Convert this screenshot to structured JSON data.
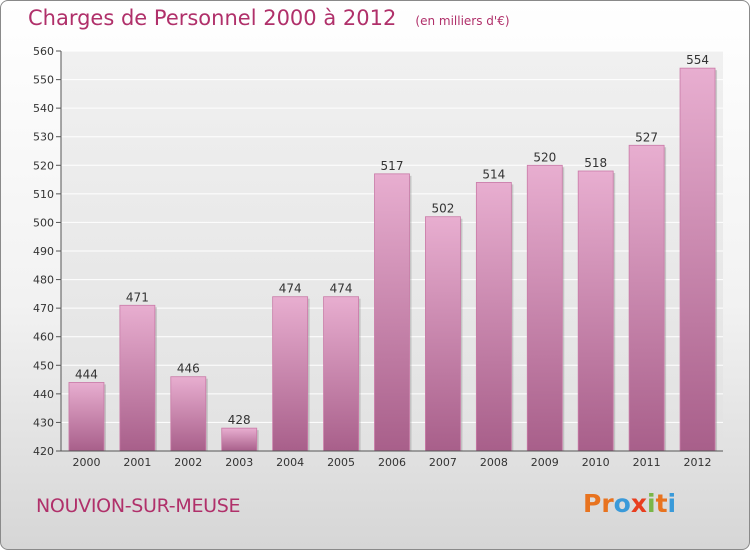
{
  "header": {
    "title": "Charges de Personnel 2000 à 2012",
    "unit_note": "(en milliers d'€)"
  },
  "footer": {
    "town": "NOUVION-SUR-MEUSE",
    "brand": [
      "P",
      "r",
      "o",
      "x",
      "i",
      "t",
      "i"
    ],
    "brand_colors": [
      "#e8731f",
      "#e8731f",
      "#3a9ad9",
      "#e83e1f",
      "#7ab648",
      "#e8731f",
      "#3a9ad9"
    ]
  },
  "colors": {
    "bar_top": "#e8aed0",
    "bar_bottom": "#a85f8a",
    "title": "#b0306a"
  },
  "chart_data": {
    "type": "bar",
    "title": "Charges de Personnel 2000 à 2012",
    "subtitle": "(en milliers d'€)",
    "xlabel": "",
    "ylabel": "",
    "categories": [
      "2000",
      "2001",
      "2002",
      "2003",
      "2004",
      "2005",
      "2006",
      "2007",
      "2008",
      "2009",
      "2010",
      "2011",
      "2012"
    ],
    "values": [
      444,
      471,
      446,
      428,
      474,
      474,
      517,
      502,
      514,
      520,
      518,
      527,
      554
    ],
    "ylim": [
      420,
      560
    ],
    "yticks": [
      420,
      430,
      440,
      450,
      460,
      470,
      480,
      490,
      500,
      510,
      520,
      530,
      540,
      550,
      560
    ],
    "grid": true,
    "legend": "none"
  }
}
